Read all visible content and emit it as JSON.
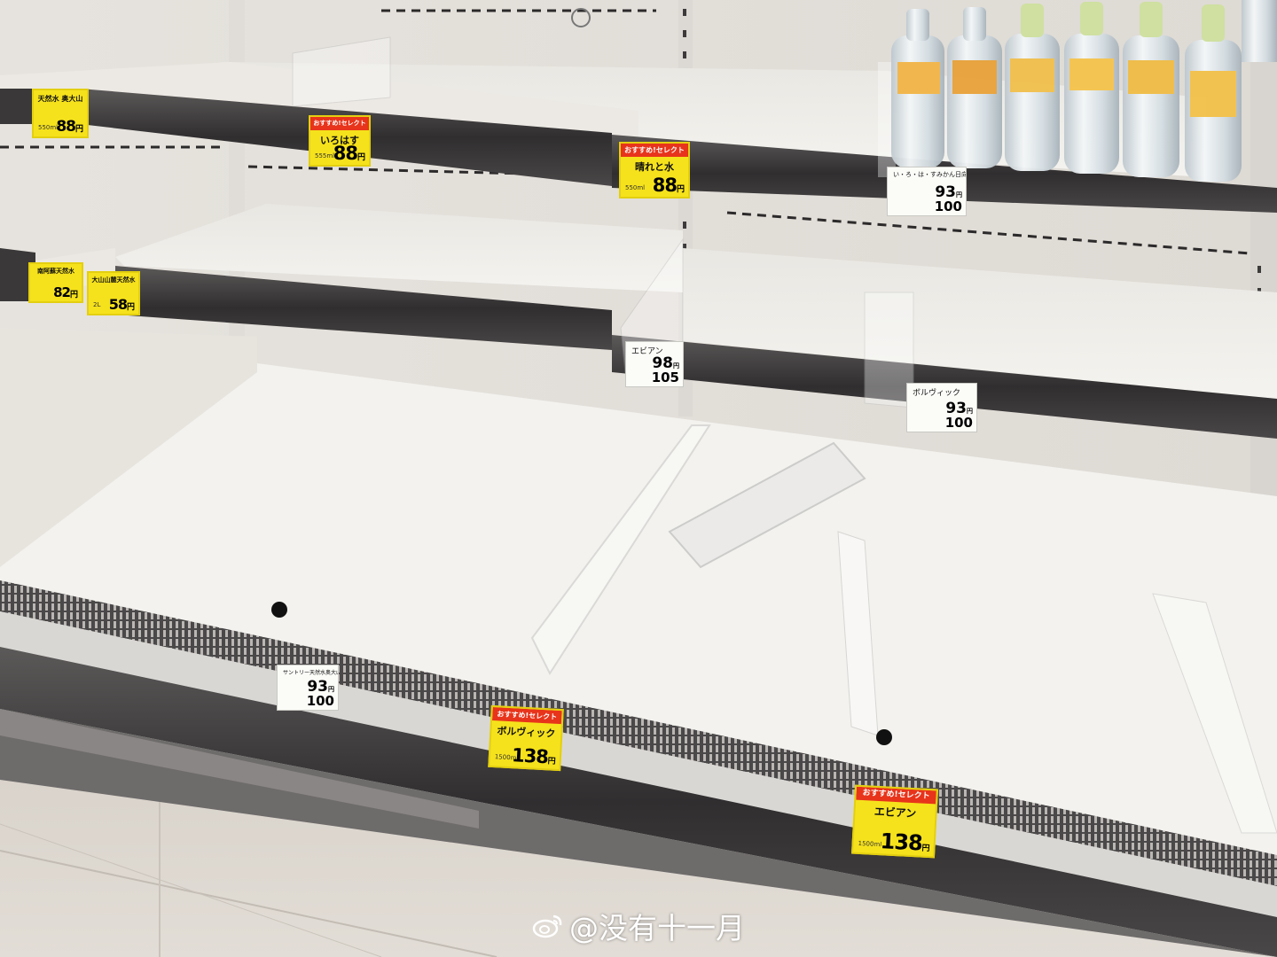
{
  "scene": {
    "description_tags": [
      "supermarket",
      "refrigerated-shelf",
      "empty-shelves",
      "bottled-water"
    ],
    "colors": {
      "shelf_white": "#f0efeb",
      "rail_dark": "#3a3838",
      "tag_yellow": "#f6e21c",
      "tag_red": "#e8341b",
      "floor": "#d9d4cd"
    }
  },
  "price_tags": [
    {
      "id": "tag-tennensui-top",
      "header": "",
      "name": "天然水 奥大山",
      "volume": "550ml",
      "price": "88",
      "unit": "円"
    },
    {
      "id": "tag-irohasu",
      "header": "おすすめ!セレクト",
      "name": "いろはす",
      "volume": "555ml",
      "price": "88",
      "unit": "円"
    },
    {
      "id": "tag-hareto-mizu",
      "header": "おすすめ!セレクト",
      "name": "晴れと水",
      "volume": "550ml",
      "price": "88",
      "unit": "円"
    },
    {
      "id": "tag-irohasu-mikan",
      "name": "い・ろ・は・すみかん日向夏",
      "price1": "93",
      "price2": "100",
      "unit": "円"
    },
    {
      "id": "tag-oyamada",
      "header": "",
      "name": "大山山麓天然水",
      "volume": "2L",
      "price": "58",
      "unit": "円"
    },
    {
      "id": "tag-left-82",
      "header": "",
      "name": "南阿蘇天然水",
      "volume": "",
      "price": "82",
      "unit": "円"
    },
    {
      "id": "tag-evian-mid",
      "name": "エビアン",
      "price1": "98",
      "price2": "105",
      "unit": "円"
    },
    {
      "id": "tag-volvic-mid",
      "name": "ボルヴィック",
      "price1": "93",
      "price2": "100",
      "unit": "円"
    },
    {
      "id": "tag-suntory-bottom",
      "name": "サントリー天然水奥大山",
      "price1": "93",
      "price2": "100",
      "unit": "円"
    },
    {
      "id": "tag-volvic-bottom",
      "header": "おすすめ!セレクト",
      "name": "ボルヴィック",
      "volume": "1500ml",
      "price": "138",
      "unit": "円"
    },
    {
      "id": "tag-evian-bottom",
      "header": "おすすめ!セレクト",
      "name": "エビアン",
      "volume": "1500ml",
      "price": "138",
      "unit": "円"
    }
  ],
  "watermark": {
    "icon": "weibo-icon",
    "text": "@没有十一月"
  }
}
